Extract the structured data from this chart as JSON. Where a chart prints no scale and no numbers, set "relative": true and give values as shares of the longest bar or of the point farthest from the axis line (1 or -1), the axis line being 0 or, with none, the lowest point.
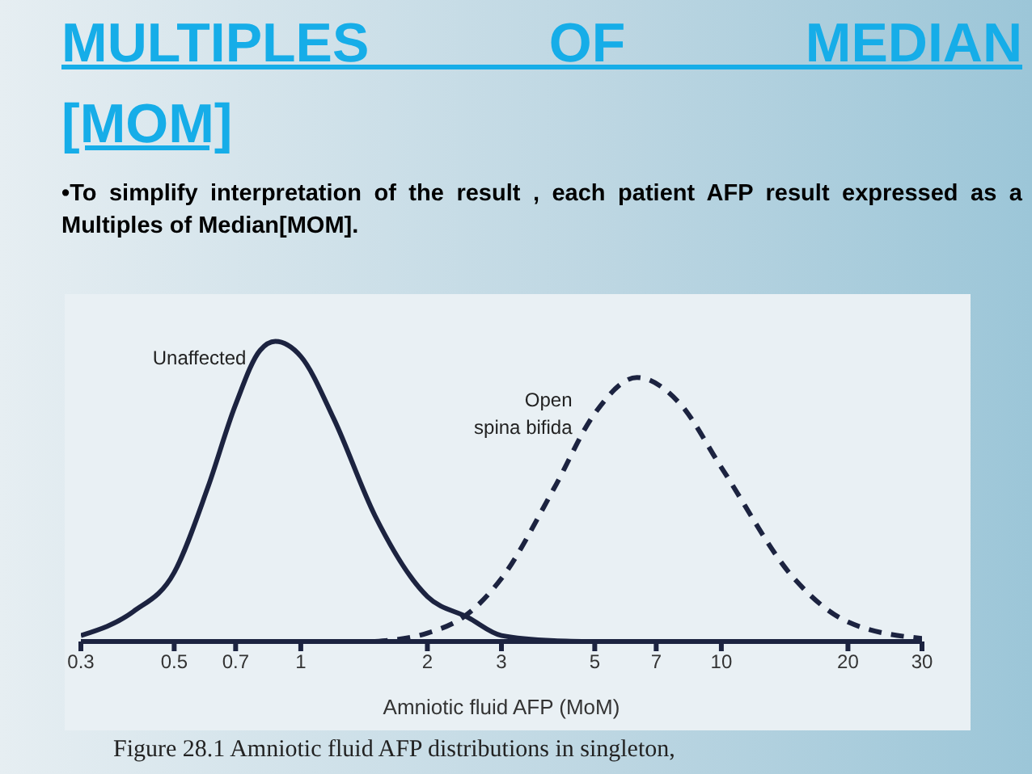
{
  "chart_data": {
    "type": "line",
    "title": "MULTIPLES OF MEDIAN [MOM]",
    "subtitle": "•To simplify interpretation of the result , each patient AFP result expressed as a Multiples of Median[MOM].",
    "xlabel": "Amniotic fluid AFP (MoM)",
    "log": "x",
    "xlim": [
      0.3,
      30
    ],
    "xticks": [
      0.3,
      0.5,
      0.7,
      1,
      2,
      3,
      5,
      7,
      10,
      20,
      30
    ],
    "relative": true,
    "marker": "none",
    "annotations": [
      "Figure 28.1 Amniotic fluid AFP distributions in singleton,"
    ],
    "series": [
      {
        "name": "Unaffected",
        "color": "#1c2340",
        "line_style": "solid",
        "x": [
          0.3,
          0.4,
          0.5,
          0.6,
          0.7,
          0.8,
          0.87,
          1,
          1.2,
          1.5,
          2,
          2.5,
          3,
          4,
          5
        ],
        "values": [
          0.02,
          0.1,
          0.23,
          0.51,
          0.79,
          0.97,
          1,
          0.95,
          0.74,
          0.42,
          0.15,
          0.08,
          0.02,
          0.003,
          0
        ]
      },
      {
        "name": "Open\nspina bifida",
        "color": "#1c2340",
        "line_style": "dashed",
        "x": [
          1.5,
          2,
          2.5,
          3,
          4,
          5,
          6.3,
          8,
          10,
          15,
          20,
          30
        ],
        "values": [
          0,
          0.028,
          0.093,
          0.21,
          0.51,
          0.76,
          0.88,
          0.79,
          0.58,
          0.205,
          0.065,
          0.01
        ]
      }
    ]
  }
}
